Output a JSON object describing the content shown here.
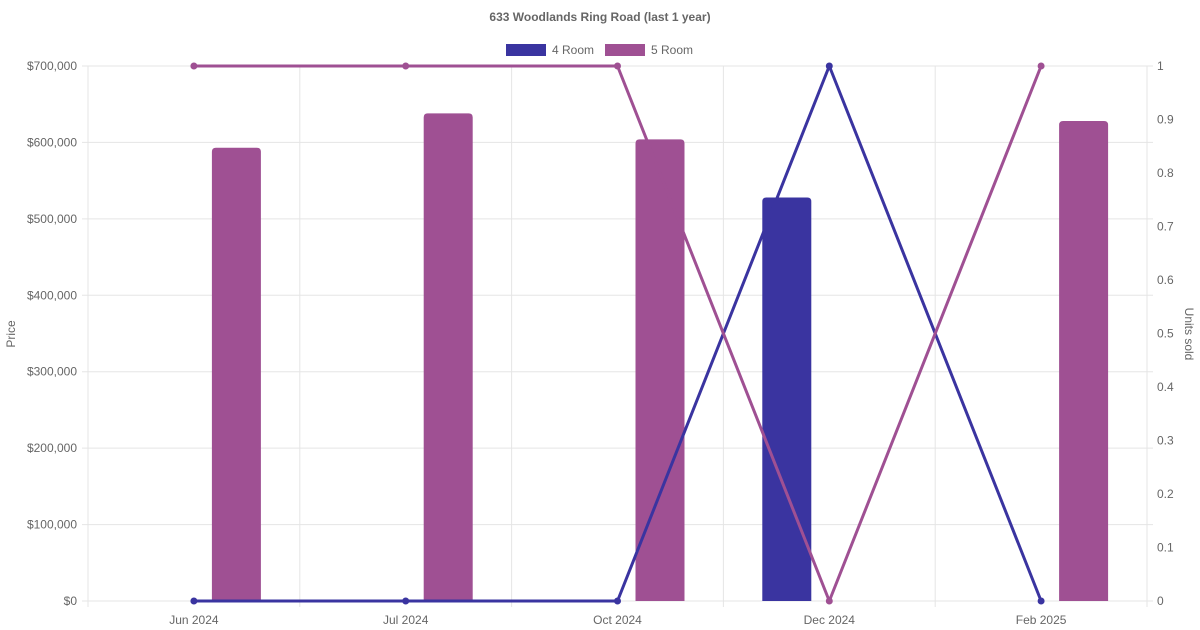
{
  "chart_data": {
    "type": "bar",
    "title": "633 Woodlands Ring Road (last 1 year)",
    "categories": [
      "Jun 2024",
      "Jul 2024",
      "Oct 2024",
      "Dec 2024",
      "Feb 2025"
    ],
    "ylabel": "Price",
    "y2label": "Units sold",
    "ylim": [
      0,
      700000
    ],
    "y2lim": [
      0,
      1
    ],
    "yticks": [
      "$0",
      "$100,000",
      "$200,000",
      "$300,000",
      "$400,000",
      "$500,000",
      "$600,000",
      "$700,000"
    ],
    "y2ticks": [
      "0",
      "0.1",
      "0.2",
      "0.3",
      "0.4",
      "0.5",
      "0.6",
      "0.7",
      "0.8",
      "0.9",
      "1"
    ],
    "grid": true,
    "legend_position": "top-center",
    "series": [
      {
        "name": "4 Room",
        "color": "#3a34a0",
        "price": [
          null,
          null,
          null,
          528000,
          null
        ],
        "units_sold": [
          0,
          0,
          0,
          1,
          0
        ]
      },
      {
        "name": "5 Room",
        "color": "#9f5093",
        "price": [
          593000,
          638000,
          604000,
          null,
          628000
        ],
        "units_sold": [
          1,
          1,
          1,
          0,
          1
        ]
      }
    ]
  }
}
